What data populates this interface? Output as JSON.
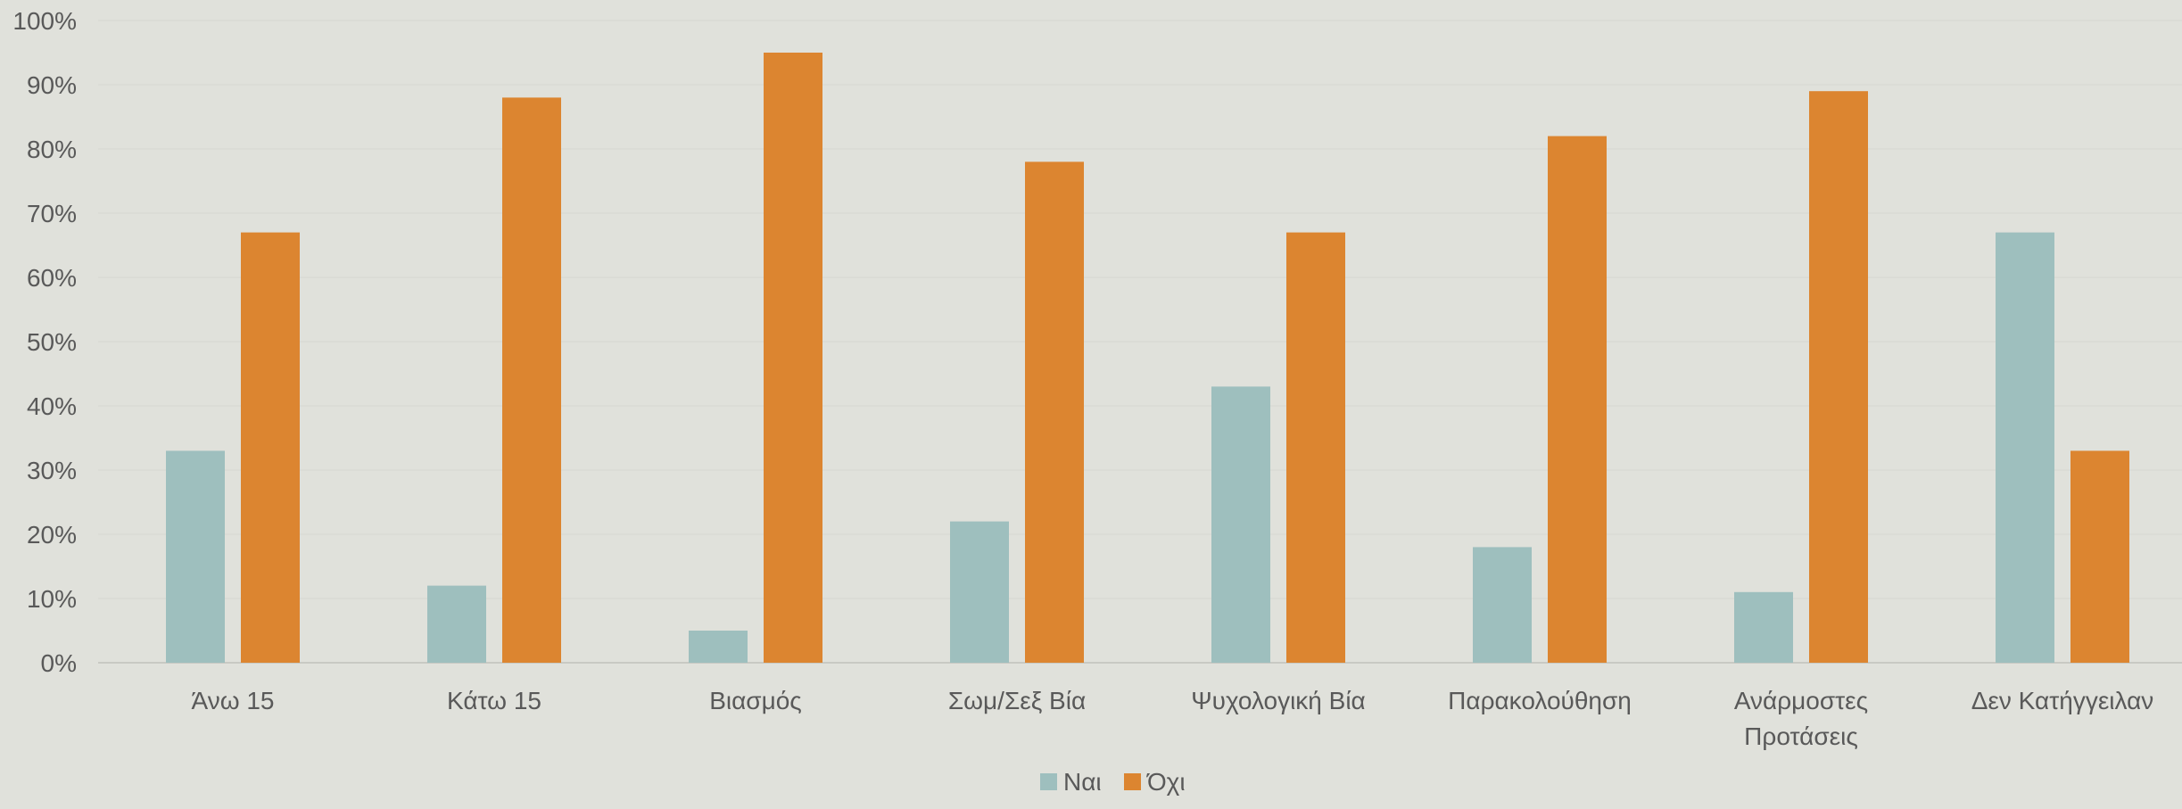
{
  "chart_data": {
    "type": "bar",
    "categories": [
      [
        "Άνω 15"
      ],
      [
        "Κάτω 15"
      ],
      [
        "Βιασμός"
      ],
      [
        "Σωμ/Σεξ Βία"
      ],
      [
        "Ψυχολογική Βία"
      ],
      [
        "Παρακολούθηση"
      ],
      [
        "Ανάρμοστες",
        "Προτάσεις"
      ],
      [
        "Δεν Κατήγγειλαν"
      ]
    ],
    "series": [
      {
        "name": "Ναι",
        "color": "#9ebfbe",
        "values": [
          33,
          12,
          5,
          22,
          43,
          18,
          11,
          67
        ]
      },
      {
        "name": "Όχι",
        "color": "#dc8530",
        "values": [
          67,
          88,
          95,
          78,
          67,
          82,
          89,
          33
        ]
      }
    ],
    "y_ticks": [
      "0%",
      "10%",
      "20%",
      "30%",
      "40%",
      "50%",
      "60%",
      "70%",
      "80%",
      "90%",
      "100%"
    ],
    "ylim": [
      0,
      100
    ],
    "grid": true,
    "legend_position": "bottom",
    "gridline_color": "#d9dad4",
    "axis_color": "#c8c9c3"
  }
}
